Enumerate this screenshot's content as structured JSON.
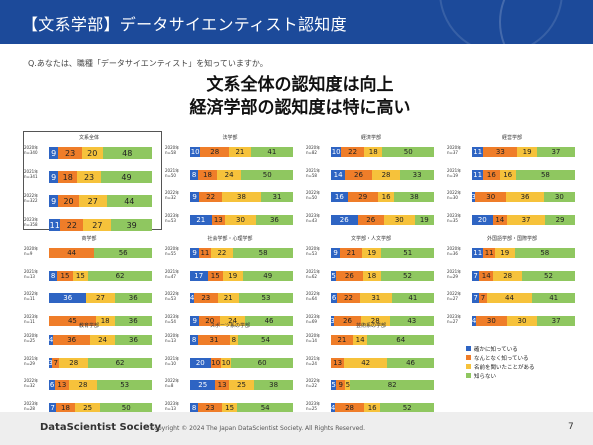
{
  "header": {
    "title": "【文系学部】データサイエンティスト認知度"
  },
  "question": "Q.あなたは、職種「データサイエンティスト」を知っていますか。",
  "headline": [
    "文系全体の認知度は向上",
    "経済学部の認知度は特に高い"
  ],
  "colors": {
    "c0": "#2e64c3",
    "c1": "#ef7d29",
    "c2": "#f6c23b",
    "c3": "#8fc760",
    "header": "#1c4a9a"
  },
  "legend": [
    "確かに知っている",
    "なんとなく知っている",
    "名前を聞いたことがある",
    "知らない"
  ],
  "blocks": [
    {
      "title": "文系全体",
      "big": true,
      "rows": [
        {
          "year": "2020年",
          "n": "n=340",
          "values": [
            9,
            23,
            20,
            48
          ]
        },
        {
          "year": "2021年",
          "n": "n=341",
          "values": [
            9,
            18,
            23,
            49
          ]
        },
        {
          "year": "2022年",
          "n": "n=322",
          "values": [
            9,
            20,
            27,
            44
          ]
        },
        {
          "year": "2023年",
          "n": "n=358",
          "values": [
            11,
            22,
            27,
            39
          ]
        }
      ]
    },
    {
      "title": "法学部",
      "rows": [
        {
          "year": "2020年",
          "n": "n=58",
          "values": [
            10,
            28,
            21,
            41
          ]
        },
        {
          "year": "2021年",
          "n": "n=50",
          "values": [
            8,
            18,
            24,
            50
          ]
        },
        {
          "year": "2022年",
          "n": "n=32",
          "values": [
            9,
            22,
            38,
            31
          ]
        },
        {
          "year": "2023年",
          "n": "n=53",
          "values": [
            21,
            13,
            30,
            36
          ]
        }
      ]
    },
    {
      "title": "経済学部",
      "rows": [
        {
          "year": "2020年",
          "n": "n=82",
          "values": [
            10,
            22,
            18,
            50
          ]
        },
        {
          "year": "2021年",
          "n": "n=58",
          "values": [
            14,
            26,
            28,
            33
          ]
        },
        {
          "year": "2022年",
          "n": "n=50",
          "values": [
            16,
            29,
            16,
            38
          ]
        },
        {
          "year": "2023年",
          "n": "n=43",
          "values": [
            26,
            26,
            30,
            19
          ]
        }
      ]
    },
    {
      "title": "経営学部",
      "rows": [
        {
          "year": "2020年",
          "n": "n=37",
          "values": [
            11,
            33,
            19,
            37
          ]
        },
        {
          "year": "2021年",
          "n": "n=19",
          "values": [
            11,
            16,
            16,
            58
          ]
        },
        {
          "year": "2022年",
          "n": "n=30",
          "values": [
            3,
            30,
            36,
            30
          ]
        },
        {
          "year": "2023年",
          "n": "n=35",
          "values": [
            20,
            14,
            37,
            29
          ]
        }
      ]
    },
    {
      "title": "商学部",
      "rows": [
        {
          "year": "2020年",
          "n": "n=9",
          "values": [
            0,
            44,
            0,
            56
          ]
        },
        {
          "year": "2021年",
          "n": "n=13",
          "values": [
            8,
            15,
            15,
            62
          ]
        },
        {
          "year": "2022年",
          "n": "n=11",
          "values": [
            36,
            0,
            27,
            36
          ]
        },
        {
          "year": "2023年",
          "n": "n=11",
          "values": [
            0,
            45,
            18,
            36
          ]
        }
      ]
    },
    {
      "title": "社会学部・心理学部",
      "rows": [
        {
          "year": "2020年",
          "n": "n=55",
          "values": [
            9,
            11,
            22,
            58
          ]
        },
        {
          "year": "2021年",
          "n": "n=47",
          "values": [
            17,
            15,
            19,
            49
          ]
        },
        {
          "year": "2022年",
          "n": "n=53",
          "values": [
            4,
            23,
            21,
            53
          ]
        },
        {
          "year": "2023年",
          "n": "n=54",
          "values": [
            9,
            20,
            24,
            46
          ]
        }
      ]
    },
    {
      "title": "文学部・人文学部",
      "rows": [
        {
          "year": "2020年",
          "n": "n=53",
          "values": [
            9,
            21,
            19,
            51
          ]
        },
        {
          "year": "2021年",
          "n": "n=62",
          "values": [
            5,
            26,
            18,
            52
          ]
        },
        {
          "year": "2022年",
          "n": "n=64",
          "values": [
            6,
            22,
            31,
            41
          ]
        },
        {
          "year": "2023年",
          "n": "n=69",
          "values": [
            3,
            26,
            28,
            43
          ]
        }
      ]
    },
    {
      "title": "外国語学部・国際学部",
      "rows": [
        {
          "year": "2020年",
          "n": "n=36",
          "values": [
            11,
            11,
            19,
            58
          ]
        },
        {
          "year": "2021年",
          "n": "n=29",
          "values": [
            7,
            14,
            28,
            52
          ]
        },
        {
          "year": "2022年",
          "n": "n=27",
          "values": [
            7,
            7,
            44,
            41
          ]
        },
        {
          "year": "2023年",
          "n": "n=27",
          "values": [
            4,
            30,
            30,
            37
          ]
        }
      ]
    },
    {
      "title": "教育学部",
      "rows": [
        {
          "year": "2020年",
          "n": "n=25",
          "values": [
            4,
            36,
            24,
            36
          ]
        },
        {
          "year": "2021年",
          "n": "n=29",
          "values": [
            3,
            7,
            28,
            62
          ]
        },
        {
          "year": "2022年",
          "n": "n=32",
          "values": [
            6,
            13,
            28,
            53
          ]
        },
        {
          "year": "2023年",
          "n": "n=28",
          "values": [
            7,
            18,
            25,
            50
          ]
        }
      ]
    },
    {
      "title": "スポーツ系の学部",
      "rows": [
        {
          "year": "2020年",
          "n": "n=13",
          "values": [
            8,
            31,
            8,
            54
          ]
        },
        {
          "year": "2021年",
          "n": "n=10",
          "values": [
            20,
            10,
            10,
            60
          ]
        },
        {
          "year": "2022年",
          "n": "n=8",
          "values": [
            25,
            13,
            25,
            38
          ]
        },
        {
          "year": "2023年",
          "n": "n=13",
          "values": [
            8,
            23,
            15,
            54
          ]
        }
      ]
    },
    {
      "title": "芸術系の学部",
      "rows": [
        {
          "year": "2020年",
          "n": "n=14",
          "values": [
            0,
            21,
            14,
            64
          ]
        },
        {
          "year": "2021年",
          "n": "n=24",
          "values": [
            0,
            13,
            42,
            46
          ]
        },
        {
          "year": "2022年",
          "n": "n=22",
          "values": [
            5,
            9,
            5,
            82
          ]
        },
        {
          "year": "2023年",
          "n": "n=25",
          "values": [
            4,
            28,
            16,
            52
          ]
        }
      ]
    }
  ],
  "footer": {
    "logo": "DataScientist Society",
    "copyright": "Copyright © 2024  The Japan DataScientist Society. All Rights Reserved.",
    "page": "7"
  }
}
